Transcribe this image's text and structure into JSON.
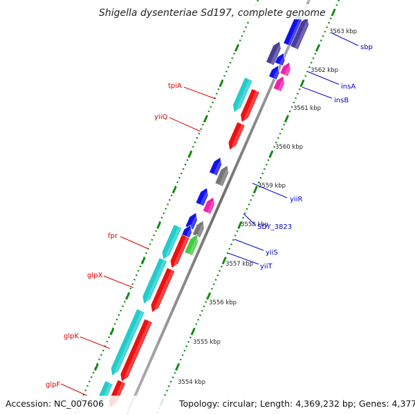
{
  "title": "Shigella dysenteriae Sd197, complete genome",
  "accession": "Accession: NC_007606",
  "topology": "Topology: circular; Length: 4,369,232 bp; Genes: 4,377",
  "scale_labels": [
    "3563 kbp",
    "3562 kbp",
    "3561 kbp",
    "3560 kbp",
    "3559 kbp",
    "3558 kbp",
    "3557 kbp",
    "3556 kbp",
    "3555 kbp",
    "3554 kbp"
  ],
  "genes_left": [
    "tpiA",
    "yiiQ",
    "fpr",
    "glpX",
    "glpK",
    "glpF"
  ],
  "genes_right": [
    "sbp",
    "insA",
    "insB",
    "yiiR",
    "SDY_3823",
    "yiiS",
    "yiiT"
  ],
  "colors": {
    "backbone": "#8c8c8c",
    "tick": "#118811",
    "label_left": "#dd0000",
    "label_right": "#0000cc",
    "cds_red": "#ee1111",
    "cds_cyan": "#22cccc",
    "cds_blue": "#1111ee",
    "cds_gray": "#777777",
    "cds_magenta": "#ee22aa",
    "cds_green": "#44cc44",
    "cds_navy": "#4a3d99"
  }
}
